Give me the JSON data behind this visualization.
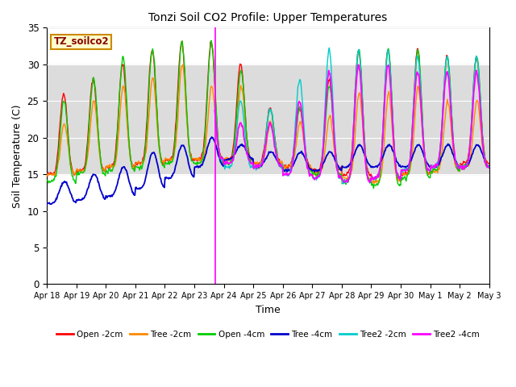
{
  "title": "Tonzi Soil CO2 Profile: Upper Temperatures",
  "xlabel": "Time",
  "ylabel": "Soil Temperature (C)",
  "ylim": [
    0,
    35
  ],
  "yticks": [
    0,
    5,
    10,
    15,
    20,
    25,
    30,
    35
  ],
  "date_labels": [
    "Apr 18",
    "Apr 19",
    "Apr 20",
    "Apr 21",
    "Apr 22",
    "Apr 23",
    "Apr 24",
    "Apr 25",
    "Apr 26",
    "Apr 27",
    "Apr 28",
    "Apr 29",
    "Apr 30",
    "May 1",
    "May 2",
    "May 3"
  ],
  "box_label": "TZ_soilco2",
  "legend_entries": [
    "Open -2cm",
    "Tree -2cm",
    "Open -4cm",
    "Tree -4cm",
    "Tree2 -2cm",
    "Tree2 -4cm"
  ],
  "legend_colors": [
    "#ff0000",
    "#ff8800",
    "#00cc00",
    "#0000cc",
    "#00cccc",
    "#ff00ff"
  ],
  "bg_band_ylow": 15,
  "bg_band_yhigh": 30,
  "bg_band_color": "#dcdcdc",
  "vertical_line_x": 5.7,
  "vertical_line_color": "#ff00ff",
  "n_days": 15,
  "pts_per_day": 48
}
